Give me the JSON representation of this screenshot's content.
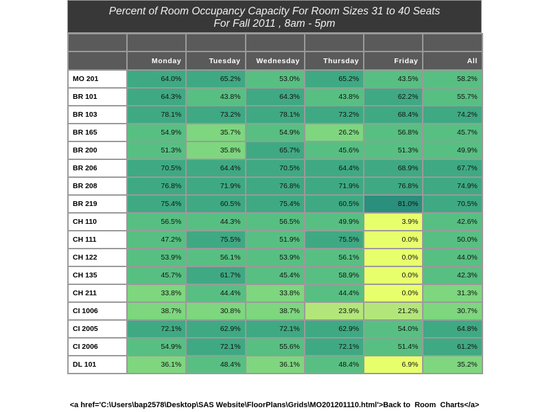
{
  "title_line1": "Percent of Room Occupancy Capacity For Room Sizes 31 to 40 Seats",
  "title_line2": "For Fall 2011  , 8am - 5pm",
  "columns": [
    "Monday",
    "Tuesday",
    "Wednesday",
    "Thursday",
    "Friday",
    "All"
  ],
  "footer": "<a href='C:\\Users\\bap2578\\Desktop\\SAS Website\\FloorPlans\\Grids\\MO201201110.html'>Back to  Room  Charts</a>",
  "chart_data": {
    "type": "heatmap",
    "title": "Percent of Room Occupancy Capacity For Room Sizes 31 to 40 Seats For Fall 2011  , 8am - 5pm",
    "columns": [
      "Monday",
      "Tuesday",
      "Wednesday",
      "Thursday",
      "Friday",
      "All"
    ],
    "rows": [
      {
        "room": "MO 201",
        "values": [
          64.0,
          65.2,
          53.0,
          65.2,
          43.5,
          58.2
        ]
      },
      {
        "room": "BR 101",
        "values": [
          64.3,
          43.8,
          64.3,
          43.8,
          62.2,
          55.7
        ]
      },
      {
        "room": "BR 103",
        "values": [
          78.1,
          73.2,
          78.1,
          73.2,
          68.4,
          74.2
        ]
      },
      {
        "room": "BR 165",
        "values": [
          54.9,
          35.7,
          54.9,
          26.2,
          56.8,
          45.7
        ]
      },
      {
        "room": "BR 200",
        "values": [
          51.3,
          35.8,
          65.7,
          45.6,
          51.3,
          49.9
        ]
      },
      {
        "room": "BR 206",
        "values": [
          70.5,
          64.4,
          70.5,
          64.4,
          68.9,
          67.7
        ]
      },
      {
        "room": "BR 208",
        "values": [
          76.8,
          71.9,
          76.8,
          71.9,
          76.8,
          74.9
        ]
      },
      {
        "room": "BR 219",
        "values": [
          75.4,
          60.5,
          75.4,
          60.5,
          81.0,
          70.5
        ]
      },
      {
        "room": "CH 110",
        "values": [
          56.5,
          44.3,
          56.5,
          49.9,
          3.9,
          42.6
        ]
      },
      {
        "room": "CH 111",
        "values": [
          47.2,
          75.5,
          51.9,
          75.5,
          0.0,
          50.0
        ]
      },
      {
        "room": "CH 122",
        "values": [
          53.9,
          56.1,
          53.9,
          56.1,
          0.0,
          44.0
        ]
      },
      {
        "room": "CH 135",
        "values": [
          45.7,
          61.7,
          45.4,
          58.9,
          0.0,
          42.3
        ]
      },
      {
        "room": "CH 211",
        "values": [
          33.8,
          44.4,
          33.8,
          44.4,
          0.0,
          31.3
        ]
      },
      {
        "room": "CI 1006",
        "values": [
          38.7,
          30.8,
          38.7,
          23.9,
          21.2,
          30.7
        ]
      },
      {
        "room": "CI 2005",
        "values": [
          72.1,
          62.9,
          72.1,
          62.9,
          54.0,
          64.8
        ]
      },
      {
        "room": "CI 2006",
        "values": [
          54.9,
          72.1,
          55.6,
          72.1,
          51.4,
          61.2
        ]
      },
      {
        "room": "DL 101",
        "values": [
          36.1,
          48.4,
          36.1,
          48.4,
          6.9,
          35.2
        ]
      }
    ],
    "value_format": "percent_1dp",
    "color_scale": [
      "#e8ff6c",
      "#b3e67a",
      "#7ed67f",
      "#58bf82",
      "#3fa983",
      "#2a8f7c"
    ]
  }
}
